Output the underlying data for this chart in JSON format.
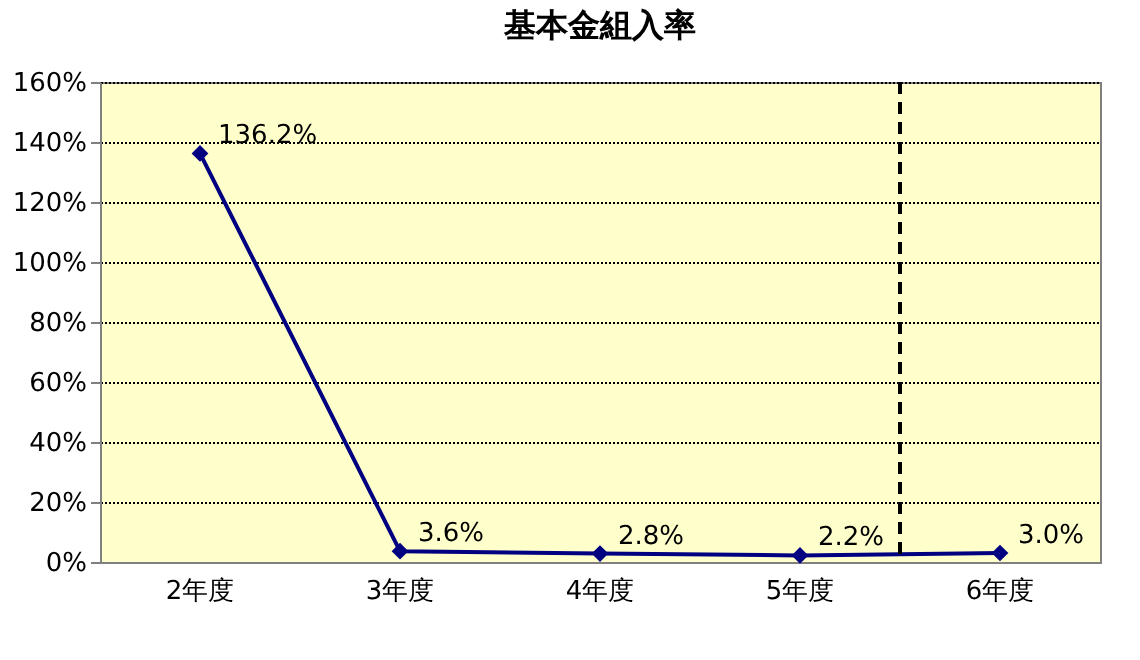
{
  "chart_data": {
    "type": "line",
    "title": "基本金組入率",
    "categories": [
      "2年度",
      "3年度",
      "4年度",
      "5年度",
      "6年度"
    ],
    "series": [
      {
        "color": "#000080",
        "values": [
          136.2,
          3.6,
          2.8,
          2.2,
          3.0
        ],
        "value_labels": [
          "136.2%",
          "3.6%",
          "2.8%",
          "2.2%",
          "3.0%"
        ]
      }
    ],
    "ylim": [
      0,
      160
    ],
    "yticks": [
      {
        "value": 0,
        "label": "0%"
      },
      {
        "value": 20,
        "label": "20%"
      },
      {
        "value": 40,
        "label": "40%"
      },
      {
        "value": 60,
        "label": "60%"
      },
      {
        "value": 80,
        "label": "80%"
      },
      {
        "value": 100,
        "label": "100%"
      },
      {
        "value": 120,
        "label": "120%"
      },
      {
        "value": 140,
        "label": "140%"
      },
      {
        "value": 160,
        "label": "160%"
      }
    ],
    "grid": "y",
    "marker": "diamond",
    "line_style": "solid",
    "ref_lines": [
      {
        "axis": "x",
        "value": "6年度",
        "line_style": "dashed",
        "color": "#000000"
      }
    ]
  }
}
